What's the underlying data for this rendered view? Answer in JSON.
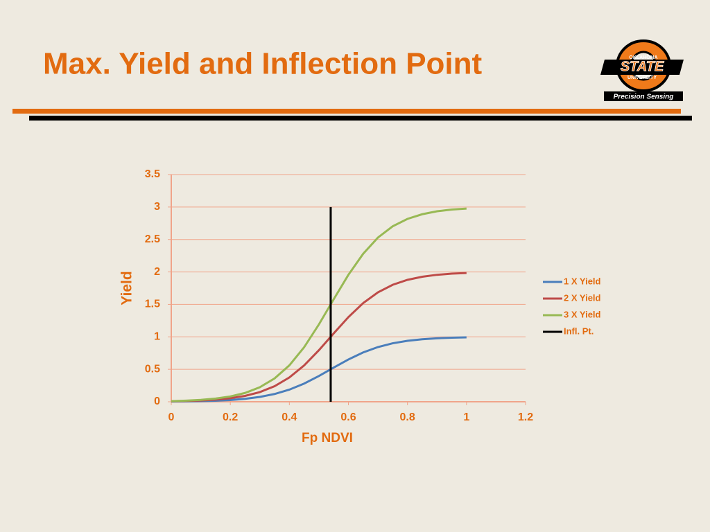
{
  "slide_title": "Max. Yield and Inflection Point",
  "logo": {
    "top_text": "OKLAHOMA",
    "main_text": "STATE",
    "bottom_text": "UNIVERSITY",
    "caption": "Precision Sensing"
  },
  "chart_data": {
    "type": "line",
    "x_label": "Fp NDVI",
    "y_label": "Yield",
    "x": [
      0,
      0.05,
      0.1,
      0.15,
      0.2,
      0.25,
      0.3,
      0.35,
      0.4,
      0.45,
      0.5,
      0.55,
      0.6,
      0.65,
      0.7,
      0.75,
      0.8,
      0.85,
      0.9,
      0.95,
      1.0
    ],
    "series": [
      {
        "name": "1 X Yield",
        "color": "#4a7ebb",
        "values": [
          0.003,
          0.006,
          0.01,
          0.016,
          0.027,
          0.045,
          0.075,
          0.12,
          0.187,
          0.28,
          0.397,
          0.526,
          0.652,
          0.76,
          0.843,
          0.901,
          0.939,
          0.963,
          0.978,
          0.987,
          0.992
        ]
      },
      {
        "name": "2 X Yield",
        "color": "#be4b48",
        "values": [
          0.007,
          0.012,
          0.02,
          0.033,
          0.055,
          0.091,
          0.149,
          0.24,
          0.374,
          0.56,
          0.794,
          1.052,
          1.304,
          1.52,
          1.686,
          1.802,
          1.878,
          1.926,
          1.956,
          1.974,
          1.984
        ]
      },
      {
        "name": "3 X Yield",
        "color": "#98b954",
        "values": [
          0.01,
          0.017,
          0.029,
          0.049,
          0.082,
          0.136,
          0.224,
          0.36,
          0.561,
          0.84,
          1.191,
          1.578,
          1.956,
          2.28,
          2.529,
          2.703,
          2.817,
          2.889,
          2.934,
          2.961,
          2.976
        ]
      },
      {
        "name": "Infl. Pt.",
        "color": "#000000",
        "x": [
          0.54,
          0.54
        ],
        "values": [
          0,
          3
        ]
      }
    ],
    "xlim": [
      0,
      1.2
    ],
    "xticks": [
      0,
      0.2,
      0.4,
      0.6,
      0.8,
      1,
      1.2
    ],
    "ylim": [
      0,
      3.5
    ],
    "yticks": [
      0,
      0.5,
      1,
      1.5,
      2,
      2.5,
      3,
      3.5
    ],
    "grid": true,
    "legend": "right"
  }
}
